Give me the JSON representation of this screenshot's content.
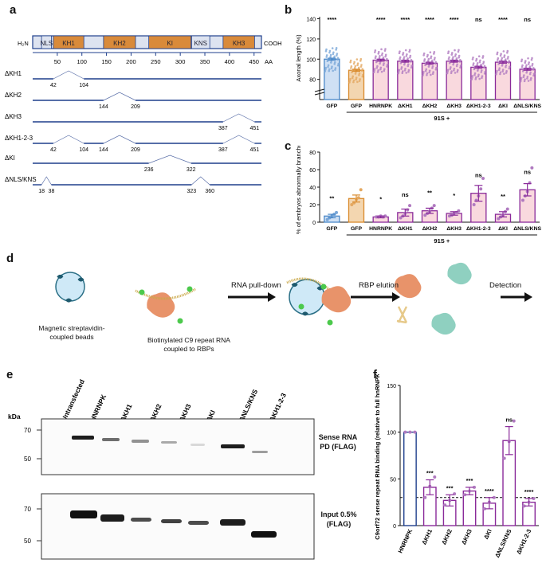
{
  "panels": {
    "a": "a",
    "b": "b",
    "c": "c",
    "d": "d",
    "e": "e",
    "f": "f"
  },
  "colors": {
    "gfp": "#4a88c8",
    "gfp_fill": "#cfe0f4",
    "orange": "#d98a2b",
    "orange_fill": "#f3d6b0",
    "purple": "#8a2a9a",
    "pink_fill": "#f9d9de",
    "navy": "#1f3f8c",
    "domain": "#d98a3a",
    "bead": "#cfe9f7",
    "protein": "#e8936a",
    "teal": "#8fd0c0",
    "green": "#4cc94c"
  },
  "panel_a": {
    "n_term": "H₂N",
    "c_term": "COOH",
    "domains": [
      {
        "label": "NLS",
        "start": 18,
        "end": 38,
        "kind": "blue"
      },
      {
        "label": "KH1",
        "start": 42,
        "end": 104,
        "kind": "orange"
      },
      {
        "label": "KH2",
        "start": 144,
        "end": 209,
        "kind": "orange"
      },
      {
        "label": "KI",
        "start": 236,
        "end": 322,
        "kind": "orange"
      },
      {
        "label": "KNS",
        "start": 323,
        "end": 360,
        "kind": "blue"
      },
      {
        "label": "KH3",
        "start": 387,
        "end": 451,
        "kind": "orange"
      }
    ],
    "axis_ticks": [
      "50",
      "100",
      "150",
      "200",
      "250",
      "300",
      "350",
      "400",
      "450"
    ],
    "axis_unit": "AA",
    "deletions": [
      {
        "label": "ΔKH1",
        "gaps": [
          [
            42,
            104
          ]
        ],
        "nums": [
          "42",
          "104"
        ]
      },
      {
        "label": "ΔKH2",
        "gaps": [
          [
            144,
            209
          ]
        ],
        "nums": [
          "144",
          "209"
        ]
      },
      {
        "label": "ΔKH3",
        "gaps": [
          [
            387,
            451
          ]
        ],
        "nums": [
          "387",
          "451"
        ]
      },
      {
        "label": "ΔKH1-2-3",
        "gaps": [
          [
            42,
            104
          ],
          [
            144,
            209
          ],
          [
            387,
            451
          ]
        ],
        "nums": [
          "42",
          "104",
          "144",
          "209",
          "387",
          "451"
        ]
      },
      {
        "label": "ΔKI",
        "gaps": [
          [
            236,
            322
          ]
        ],
        "nums": [
          "236",
          "322"
        ]
      },
      {
        "label": "ΔNLS/KNS",
        "gaps": [
          [
            18,
            38
          ],
          [
            323,
            360
          ]
        ],
        "nums": [
          "18",
          "38",
          "323",
          "360"
        ]
      }
    ]
  },
  "chart_data": [
    {
      "panel": "b",
      "type": "bar",
      "categories": [
        "GFP",
        "GFP",
        "HNRNPK",
        "ΔKH1",
        "ΔKH2",
        "ΔKH3",
        "ΔKH1-2-3",
        "ΔKI",
        "ΔNLS/KNS"
      ],
      "values": [
        100,
        89,
        99,
        98,
        96,
        98,
        92,
        97,
        90
      ],
      "errors": [
        1,
        1,
        1,
        1,
        1,
        1,
        1,
        1,
        1
      ],
      "sig": [
        "****",
        "",
        "****",
        "****",
        "****",
        "****",
        "ns",
        "****",
        "ns"
      ],
      "ylabel": "Axonal length (%)",
      "yticks": [
        "0",
        "80",
        "100",
        "120",
        "140"
      ],
      "group_label": "91S +"
    },
    {
      "panel": "c",
      "type": "bar",
      "categories": [
        "GFP",
        "GFP",
        "HNRNPK",
        "ΔKH1",
        "ΔKH2",
        "ΔKH3",
        "ΔKH1-2-3",
        "ΔKI",
        "ΔNLS/KNS"
      ],
      "values": [
        7,
        27,
        6,
        11,
        13,
        10,
        33,
        9,
        37
      ],
      "errors": [
        2,
        4,
        1,
        4,
        3,
        2,
        9,
        3,
        7
      ],
      "sig": [
        "**",
        "",
        "*",
        "ns",
        "**",
        "*",
        "ns",
        "**",
        "ns"
      ],
      "points": [
        [
          3,
          5,
          7,
          9,
          11
        ],
        [
          20,
          22,
          26,
          28,
          37
        ],
        [
          6,
          6,
          7,
          6,
          7
        ],
        [
          5,
          7,
          10,
          14,
          19
        ],
        [
          8,
          10,
          12,
          16,
          19
        ],
        [
          7,
          8,
          10,
          11,
          13
        ],
        [
          20,
          25,
          30,
          38,
          50
        ],
        [
          4,
          6,
          8,
          12,
          15
        ],
        [
          25,
          30,
          35,
          45,
          62
        ]
      ],
      "ylabel": "% of embryos abnormally branched",
      "ylim": [
        0,
        80
      ],
      "yticks": [
        "0",
        "20",
        "40",
        "60",
        "80"
      ],
      "group_label": "91S +"
    },
    {
      "panel": "f",
      "type": "bar",
      "categories": [
        "HNRNPK",
        "ΔKH1",
        "ΔKH2",
        "ΔKH3",
        "ΔKI",
        "ΔNLS/KNS",
        "ΔKH1-2-3"
      ],
      "values": [
        100,
        41,
        27,
        37,
        24,
        91,
        25
      ],
      "errors": [
        0,
        8,
        6,
        4,
        6,
        15,
        4
      ],
      "sig": [
        "",
        "***",
        "***",
        "***",
        "****",
        "ns",
        "****"
      ],
      "points": [
        [
          100,
          100,
          100
        ],
        [
          30,
          42,
          52
        ],
        [
          22,
          27,
          34
        ],
        [
          33,
          37,
          41
        ],
        [
          18,
          25,
          30
        ],
        [
          72,
          90,
          112
        ],
        [
          21,
          25,
          29
        ]
      ],
      "ylabel": "C9orf72 sense repeat RNA binding (relative to full hnRNPK)",
      "ylim": [
        0,
        150
      ],
      "yticks": [
        "0",
        "50",
        "100",
        "150"
      ],
      "reference_line": 30
    }
  ],
  "panel_d": {
    "beads_label": "Magnetic streptavidin-coupled beads",
    "rna_label": "Biotinylated C9 repeat RNA coupled to RBPs",
    "step1": "RNA pull-down",
    "step2": "RBP elution",
    "step3": "Detection"
  },
  "panel_e": {
    "lanes": [
      "Untransfected",
      "HNRNPK",
      "ΔKH1",
      "ΔKH2",
      "ΔKH3",
      "ΔKI",
      "ΔNLS/KNS",
      "ΔKH1-2-3"
    ],
    "kda": "kDa",
    "blot1_markers": [
      "70",
      "50"
    ],
    "blot2_markers": [
      "70",
      "50"
    ],
    "blot1_label": "Sense RNA PD (FLAG)",
    "blot2_label": "Input 0.5% (FLAG)"
  }
}
